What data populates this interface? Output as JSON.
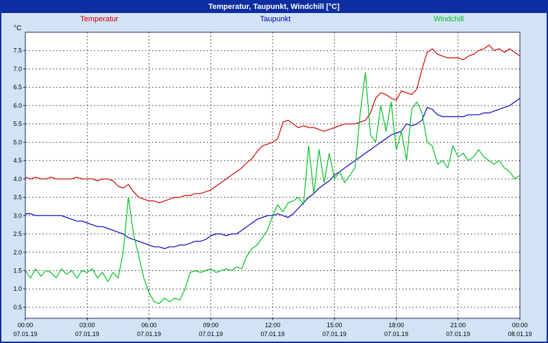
{
  "title_bar": {
    "title": "Temperatur, Taupunkt, Windchill [°C]",
    "bg_color": "#0d2ea0",
    "text_color": "#ffffff"
  },
  "window": {
    "bg_color": "#d2e3f6",
    "border_color": "#0d2ea0"
  },
  "legend": [
    {
      "label": "Temperatur",
      "color": "#cc0000"
    },
    {
      "label": "Taupunkt",
      "color": "#0000bb"
    },
    {
      "label": "Windchill",
      "color": "#00c020"
    }
  ],
  "chart_data": {
    "type": "line",
    "title": "Temperatur, Taupunkt, Windchill [°C]",
    "xlabel": "",
    "ylabel": "°C",
    "ylim": [
      0.2,
      8.0
    ],
    "x_range": [
      0,
      24
    ],
    "grid": "dashed",
    "legend_position": "top",
    "sample_interval_minutes": 15,
    "y_ticks": [
      {
        "v": 0.5,
        "label": "0.5"
      },
      {
        "v": 1.0,
        "label": "1.0"
      },
      {
        "v": 1.5,
        "label": "1.5"
      },
      {
        "v": 2.0,
        "label": "2.0"
      },
      {
        "v": 2.5,
        "label": "2.5"
      },
      {
        "v": 3.0,
        "label": "3.0"
      },
      {
        "v": 3.5,
        "label": "3.5"
      },
      {
        "v": 4.0,
        "label": "4.0"
      },
      {
        "v": 4.5,
        "label": "4.5"
      },
      {
        "v": 5.0,
        "label": "5.0"
      },
      {
        "v": 5.5,
        "label": "5.5"
      },
      {
        "v": 6.0,
        "label": "6.0"
      },
      {
        "v": 6.5,
        "label": "6.5"
      },
      {
        "v": 7.0,
        "label": "7.0"
      },
      {
        "v": 7.5,
        "label": "7.5"
      }
    ],
    "x_ticks": [
      {
        "hour": 0,
        "time": "00:00",
        "date": "07.01.19"
      },
      {
        "hour": 3,
        "time": "03:00",
        "date": "07.01.19"
      },
      {
        "hour": 6,
        "time": "06:00",
        "date": "07.01.19"
      },
      {
        "hour": 9,
        "time": "09:00",
        "date": "07.01.19"
      },
      {
        "hour": 12,
        "time": "12:00",
        "date": "07.01.19"
      },
      {
        "hour": 15,
        "time": "15:00",
        "date": "07.01.19"
      },
      {
        "hour": 18,
        "time": "18:00",
        "date": "07.01.19"
      },
      {
        "hour": 21,
        "time": "21:00",
        "date": "07.01.19"
      },
      {
        "hour": 24,
        "time": "00:00",
        "date": "08.01.19"
      }
    ],
    "series": [
      {
        "name": "Temperatur",
        "color": "#cc0000",
        "values": [
          4.05,
          4.0,
          4.05,
          4.0,
          4.0,
          4.05,
          4.0,
          4.0,
          4.0,
          4.0,
          4.05,
          4.0,
          4.0,
          4.0,
          3.95,
          4.0,
          4.0,
          3.95,
          3.8,
          3.75,
          3.85,
          3.65,
          3.5,
          3.45,
          3.4,
          3.4,
          3.35,
          3.4,
          3.45,
          3.5,
          3.5,
          3.55,
          3.55,
          3.6,
          3.6,
          3.65,
          3.7,
          3.8,
          3.9,
          4.0,
          4.1,
          4.2,
          4.3,
          4.45,
          4.55,
          4.75,
          4.9,
          4.95,
          5.0,
          5.1,
          5.55,
          5.6,
          5.5,
          5.4,
          5.45,
          5.4,
          5.4,
          5.35,
          5.3,
          5.35,
          5.4,
          5.45,
          5.5,
          5.5,
          5.5,
          5.55,
          5.6,
          5.8,
          6.2,
          6.35,
          6.3,
          6.2,
          6.15,
          6.4,
          6.35,
          6.3,
          6.45,
          7.0,
          7.45,
          7.55,
          7.4,
          7.35,
          7.3,
          7.3,
          7.3,
          7.25,
          7.35,
          7.4,
          7.5,
          7.55,
          7.65,
          7.5,
          7.55,
          7.45,
          7.55,
          7.45,
          7.35
        ]
      },
      {
        "name": "Taupunkt",
        "color": "#0000bb",
        "values": [
          3.05,
          3.05,
          3.0,
          3.0,
          3.0,
          3.0,
          3.0,
          3.0,
          2.95,
          2.9,
          2.85,
          2.85,
          2.8,
          2.75,
          2.7,
          2.7,
          2.65,
          2.6,
          2.55,
          2.5,
          2.4,
          2.35,
          2.3,
          2.25,
          2.2,
          2.15,
          2.15,
          2.1,
          2.15,
          2.15,
          2.2,
          2.2,
          2.25,
          2.3,
          2.3,
          2.35,
          2.45,
          2.5,
          2.5,
          2.45,
          2.5,
          2.5,
          2.6,
          2.7,
          2.8,
          2.9,
          2.95,
          3.0,
          3.0,
          3.05,
          3.0,
          2.95,
          3.05,
          3.2,
          3.35,
          3.5,
          3.6,
          3.75,
          3.85,
          3.95,
          4.1,
          4.2,
          4.3,
          4.4,
          4.5,
          4.6,
          4.7,
          4.8,
          4.9,
          5.0,
          5.1,
          5.2,
          5.25,
          5.3,
          5.5,
          5.45,
          5.5,
          5.6,
          5.95,
          5.9,
          5.75,
          5.7,
          5.7,
          5.7,
          5.7,
          5.7,
          5.75,
          5.75,
          5.75,
          5.8,
          5.8,
          5.85,
          5.9,
          5.95,
          6.0,
          6.1,
          6.2
        ]
      },
      {
        "name": "Windchill",
        "color": "#00c020",
        "values": [
          1.5,
          1.3,
          1.55,
          1.35,
          1.5,
          1.45,
          1.3,
          1.55,
          1.4,
          1.5,
          1.3,
          1.5,
          1.45,
          1.55,
          1.3,
          1.45,
          1.2,
          1.45,
          1.3,
          2.0,
          3.5,
          2.5,
          1.9,
          1.3,
          0.9,
          0.65,
          0.6,
          0.75,
          0.65,
          0.75,
          0.7,
          1.0,
          1.45,
          1.5,
          1.45,
          1.5,
          1.55,
          1.45,
          1.5,
          1.55,
          1.5,
          1.6,
          1.55,
          1.9,
          2.1,
          2.2,
          2.4,
          2.6,
          3.0,
          3.3,
          3.1,
          3.35,
          3.4,
          3.5,
          3.3,
          4.9,
          3.6,
          4.8,
          3.9,
          4.7,
          4.0,
          4.2,
          3.9,
          4.1,
          4.3,
          5.8,
          6.9,
          5.2,
          5.0,
          6.0,
          5.3,
          6.1,
          4.8,
          5.3,
          4.5,
          5.9,
          6.1,
          5.8,
          5.0,
          4.9,
          4.4,
          4.5,
          4.3,
          4.9,
          4.6,
          4.7,
          4.5,
          4.6,
          4.8,
          4.6,
          4.5,
          4.4,
          4.5,
          4.3,
          4.2,
          4.0,
          4.1
        ]
      }
    ]
  }
}
